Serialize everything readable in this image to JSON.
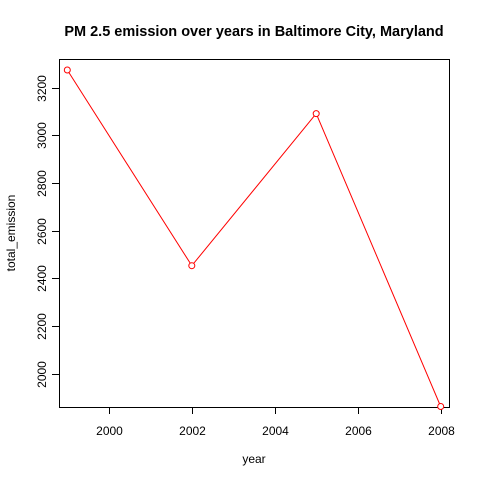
{
  "chart_data": {
    "type": "line",
    "title": "PM 2.5 emission over years in Baltimore City, Maryland",
    "xlabel": "year",
    "ylabel": "total_emission",
    "x_ticks": [
      2000,
      2002,
      2004,
      2006,
      2008
    ],
    "y_ticks": [
      2000,
      2200,
      2400,
      2600,
      2800,
      3000,
      3200
    ],
    "xlim": [
      1998.8,
      2008.2
    ],
    "ylim": [
      1860,
      3320
    ],
    "grid": false,
    "legend": "none",
    "series": [
      {
        "color": "#ff0000",
        "marker": "open-circle",
        "x": [
          1999,
          2002,
          2005,
          2008
        ],
        "y": [
          3274,
          2453,
          3091,
          1862
        ]
      }
    ]
  }
}
